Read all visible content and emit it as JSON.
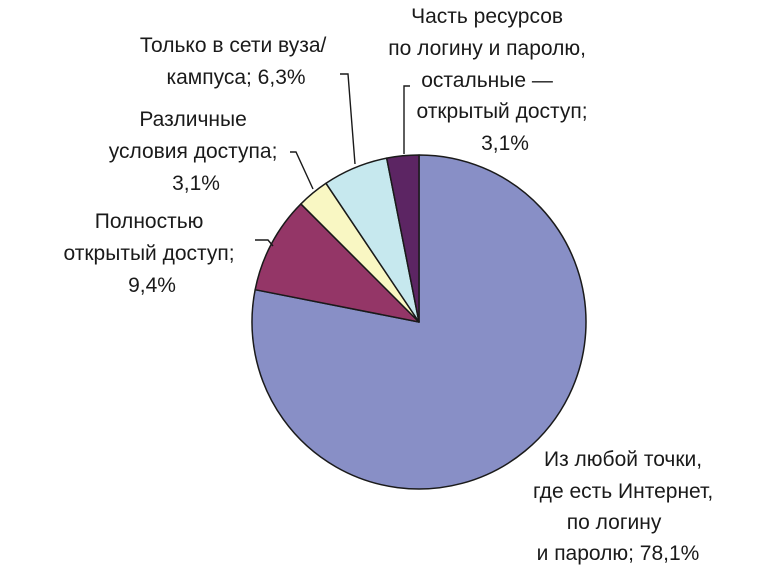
{
  "chart_data": {
    "type": "pie",
    "slices": [
      {
        "value": 78.1,
        "color": "#888fc6",
        "label_lines": [
          "Из любой точки,",
          "где есть Интернет,",
          "по логину",
          "и паролю; 78,1%"
        ]
      },
      {
        "value": 9.4,
        "color": "#943667",
        "label_lines": [
          "Полностью",
          "открытый доступ;",
          "9,4%"
        ]
      },
      {
        "value": 3.1,
        "color": "#f9f7c3",
        "label_lines": [
          "Различные",
          "условия доступа;",
          "3,1%"
        ]
      },
      {
        "value": 6.3,
        "color": "#c6e8ee",
        "label_lines": [
          "Только в сети вуза/",
          "кампуса; 6,3%"
        ]
      },
      {
        "value": 3.1,
        "color": "#5c2563",
        "label_lines": [
          "Часть ресурсов",
          "по логину и паролю,",
          "остальные —",
          "открытый доступ;",
          "3,1%"
        ]
      }
    ]
  }
}
